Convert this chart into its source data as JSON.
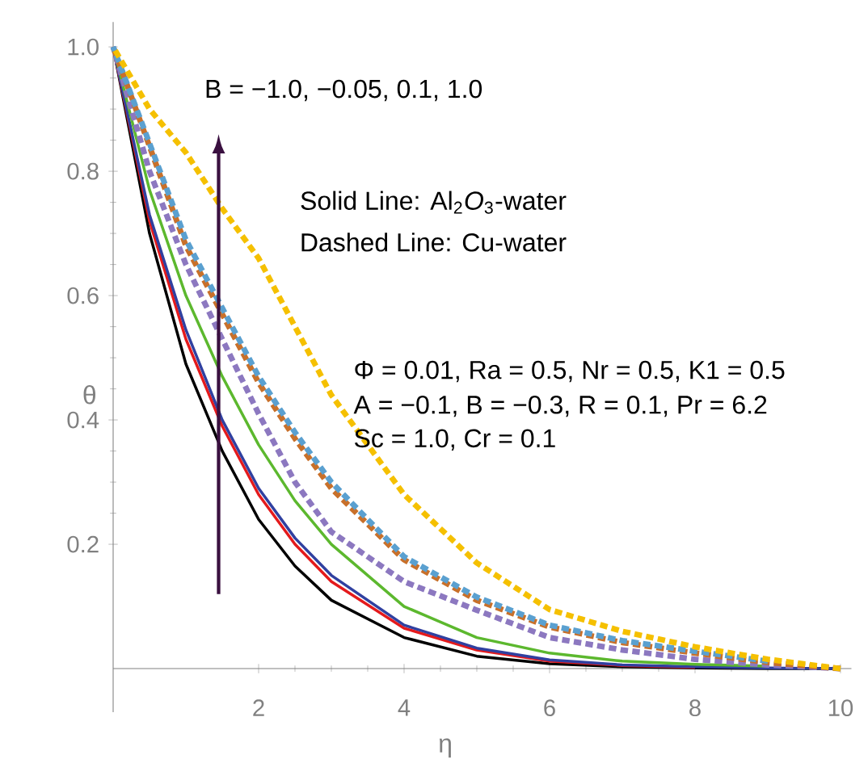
{
  "chart_data": {
    "type": "line",
    "xlabel": "η",
    "ylabel": "θ",
    "x": [
      0,
      0.5,
      1,
      1.5,
      2,
      2.5,
      3,
      4,
      5,
      6,
      7,
      8,
      9,
      10
    ],
    "series": [
      {
        "color": "#000000",
        "line_style": "solid",
        "values": [
          1,
          0.7,
          0.49,
          0.35,
          0.24,
          0.165,
          0.11,
          0.05,
          0.02,
          0.008,
          0.003,
          0.001,
          0,
          0
        ]
      },
      {
        "color": "#e41a1c",
        "line_style": "solid",
        "values": [
          1,
          0.72,
          0.53,
          0.39,
          0.28,
          0.2,
          0.14,
          0.065,
          0.03,
          0.012,
          0.005,
          0.002,
          null,
          null
        ]
      },
      {
        "color": "#3040a0",
        "line_style": "solid",
        "values": [
          1,
          0.73,
          0.545,
          0.4,
          0.29,
          0.21,
          0.15,
          0.07,
          0.033,
          0.014,
          0.006,
          0.003,
          0.001,
          0
        ]
      },
      {
        "color": "#5cb82e",
        "line_style": "solid",
        "values": [
          1,
          0.77,
          0.6,
          0.47,
          0.36,
          0.27,
          0.2,
          0.1,
          0.05,
          0.025,
          0.012,
          0.007,
          0.004,
          null
        ]
      },
      {
        "color": "#8c78c0",
        "line_style": "dashed",
        "values": [
          1,
          0.8,
          0.65,
          0.53,
          0.41,
          0.3,
          0.22,
          0.14,
          0.094,
          0.05,
          0.03,
          0.015,
          0.006,
          0
        ]
      },
      {
        "color": "#c8702a",
        "line_style": "dashed",
        "values": [
          1,
          0.84,
          0.68,
          0.57,
          0.46,
          0.37,
          0.29,
          0.175,
          0.11,
          0.067,
          0.042,
          0.025,
          0.01,
          0
        ]
      },
      {
        "color": "#5aa0d0",
        "line_style": "dashed",
        "values": [
          1,
          0.845,
          0.69,
          0.58,
          0.47,
          0.38,
          0.3,
          0.18,
          0.115,
          0.07,
          0.045,
          0.028,
          0.012,
          null
        ]
      },
      {
        "color": "#f5c000",
        "line_style": "dashed",
        "values": [
          1,
          0.9,
          0.83,
          0.74,
          0.66,
          0.55,
          0.44,
          0.28,
          0.17,
          0.095,
          0.06,
          0.035,
          0.015,
          0
        ]
      }
    ],
    "xlim": [
      0,
      10.15
    ],
    "ylim": [
      -0.07,
      1.04
    ],
    "xticks": [
      2,
      4,
      6,
      8,
      10
    ],
    "yticks": [
      0.2,
      0.4,
      0.6,
      0.8,
      {
        "value": 1,
        "label": "1.0"
      }
    ],
    "grid": false,
    "marker": "none",
    "annotations": [
      "B = −1.0, −0.05, 0.1, 1.0",
      "Solid Line: Al$_{2}$*O*$_{3}$-water",
      "Dashed Line: Cu-water",
      "Φ = 0.01, Ra = 0.5, Nr = 0.5, K1 = 0.5",
      "A = −0.1, B = −0.3, R = 0.1, Pr = 6.2",
      "Sc = 1.0, Cr = 0.1"
    ]
  }
}
